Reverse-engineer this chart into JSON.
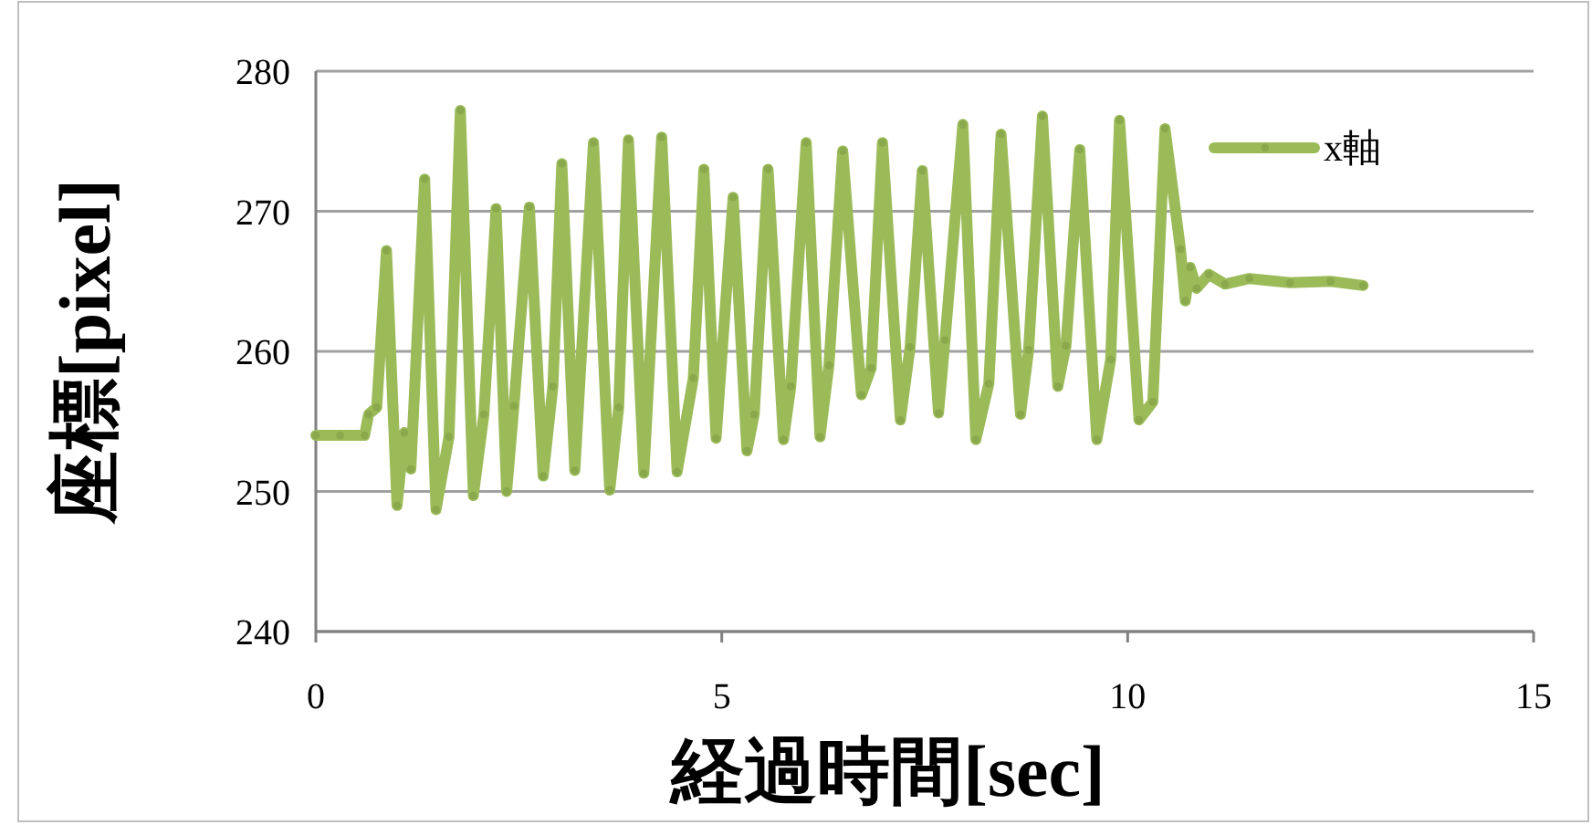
{
  "chart_data": {
    "type": "line",
    "xlabel": "経過時間[sec]",
    "ylabel": "座標[pixel]",
    "x": [
      0,
      0.3,
      0.6,
      0.65,
      0.75,
      0.87,
      1.0,
      1.09,
      1.17,
      1.34,
      1.48,
      1.64,
      1.78,
      1.94,
      2.07,
      2.22,
      2.35,
      2.44,
      2.63,
      2.8,
      2.92,
      3.03,
      3.19,
      3.42,
      3.62,
      3.73,
      3.85,
      4.04,
      4.26,
      4.45,
      4.65,
      4.78,
      4.93,
      5.14,
      5.31,
      5.4,
      5.57,
      5.76,
      5.85,
      6.04,
      6.21,
      6.32,
      6.49,
      6.72,
      6.84,
      6.98,
      7.2,
      7.32,
      7.47,
      7.67,
      7.75,
      7.97,
      8.13,
      8.29,
      8.44,
      8.68,
      8.78,
      8.95,
      9.14,
      9.24,
      9.41,
      9.62,
      9.79,
      9.9,
      10.14,
      10.31,
      10.46,
      10.65,
      10.71,
      10.77,
      10.85,
      11.0,
      11.2,
      11.5,
      12.0,
      12.5,
      12.9
    ],
    "series": [
      {
        "name": "x軸",
        "color": "#9bbb59",
        "values": [
          254,
          254,
          254,
          255.5,
          256,
          267.2,
          249,
          254.2,
          251.6,
          272.3,
          248.7,
          253.9,
          277.2,
          249.7,
          255.5,
          270.2,
          250,
          256.1,
          270.3,
          251.1,
          257.5,
          273.4,
          251.5,
          274.9,
          250.1,
          256,
          275.1,
          251.3,
          275.3,
          251.4,
          258.1,
          273,
          253.8,
          271,
          252.9,
          255.5,
          273,
          253.7,
          257.5,
          274.9,
          253.9,
          259,
          274.3,
          256.9,
          258.8,
          274.9,
          255.1,
          260.3,
          272.9,
          255.6,
          260.8,
          276.2,
          253.7,
          257.7,
          275.5,
          255.5,
          260.1,
          276.8,
          257.5,
          260.4,
          274.4,
          253.7,
          259.4,
          276.5,
          255.1,
          256.4,
          275.9,
          267.3,
          263.6,
          266,
          264.5,
          265.5,
          264.8,
          265.2,
          264.9,
          265,
          264.7
        ]
      }
    ],
    "xlim": [
      0,
      15
    ],
    "ylim": [
      240,
      280
    ],
    "xticks": [
      0,
      5,
      10,
      15
    ],
    "yticks": [
      240,
      250,
      260,
      270,
      280
    ],
    "grid": "y",
    "legend": "top right",
    "marker": "circle",
    "line_style": "solid"
  }
}
